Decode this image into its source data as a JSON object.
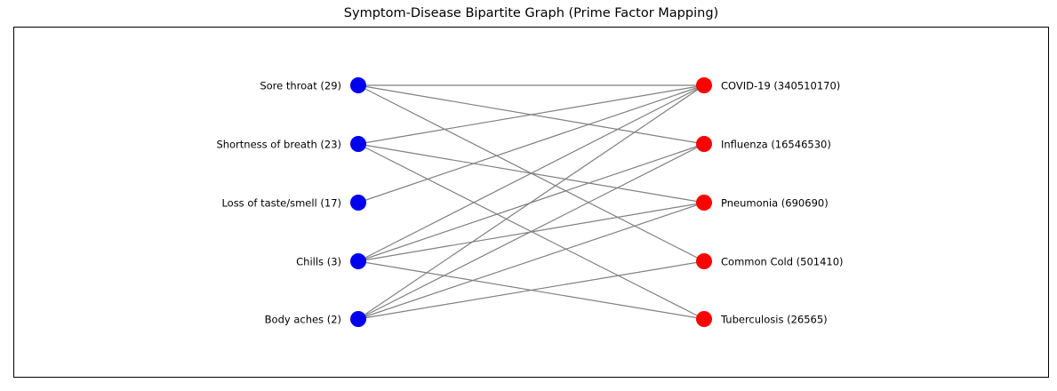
{
  "title": "Symptom-Disease Bipartite Graph (Prime Factor Mapping)",
  "colors": {
    "symptom": "#0000ee",
    "disease": "#ff0000",
    "edge": "#808080"
  },
  "symptoms": [
    {
      "id": "sore-throat",
      "label": "Sore throat (29)"
    },
    {
      "id": "shortness-of-breath",
      "label": "Shortness of breath (23)"
    },
    {
      "id": "loss-of-taste-smell",
      "label": "Loss of taste/smell (17)"
    },
    {
      "id": "chills",
      "label": "Chills (3)"
    },
    {
      "id": "body-aches",
      "label": "Body aches (2)"
    }
  ],
  "diseases": [
    {
      "id": "covid-19",
      "label": "COVID-19 (340510170)"
    },
    {
      "id": "influenza",
      "label": "Influenza (16546530)"
    },
    {
      "id": "pneumonia",
      "label": "Pneumonia (690690)"
    },
    {
      "id": "common-cold",
      "label": "Common Cold (501410)"
    },
    {
      "id": "tuberculosis",
      "label": "Tuberculosis (26565)"
    }
  ],
  "edges": [
    [
      "sore-throat",
      "covid-19"
    ],
    [
      "sore-throat",
      "influenza"
    ],
    [
      "sore-throat",
      "common-cold"
    ],
    [
      "shortness-of-breath",
      "covid-19"
    ],
    [
      "shortness-of-breath",
      "pneumonia"
    ],
    [
      "shortness-of-breath",
      "tuberculosis"
    ],
    [
      "loss-of-taste-smell",
      "covid-19"
    ],
    [
      "chills",
      "covid-19"
    ],
    [
      "chills",
      "influenza"
    ],
    [
      "chills",
      "pneumonia"
    ],
    [
      "chills",
      "tuberculosis"
    ],
    [
      "body-aches",
      "covid-19"
    ],
    [
      "body-aches",
      "influenza"
    ],
    [
      "body-aches",
      "pneumonia"
    ],
    [
      "body-aches",
      "common-cold"
    ]
  ]
}
